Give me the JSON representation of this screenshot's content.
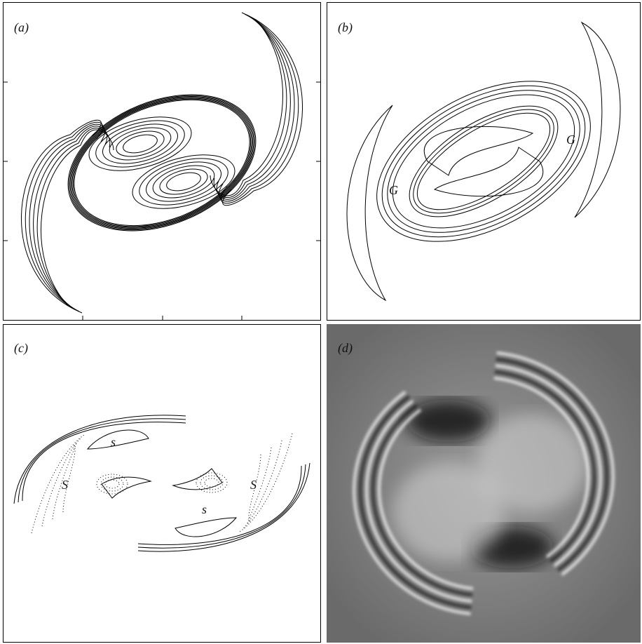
{
  "panels": [
    {
      "label": "(a)"
    },
    {
      "label": "(b)",
      "annotations": [
        "G",
        "G"
      ]
    },
    {
      "label": "(c)",
      "annotations": [
        "S",
        "s",
        "s",
        "S"
      ]
    },
    {
      "label": "(d)"
    }
  ]
}
